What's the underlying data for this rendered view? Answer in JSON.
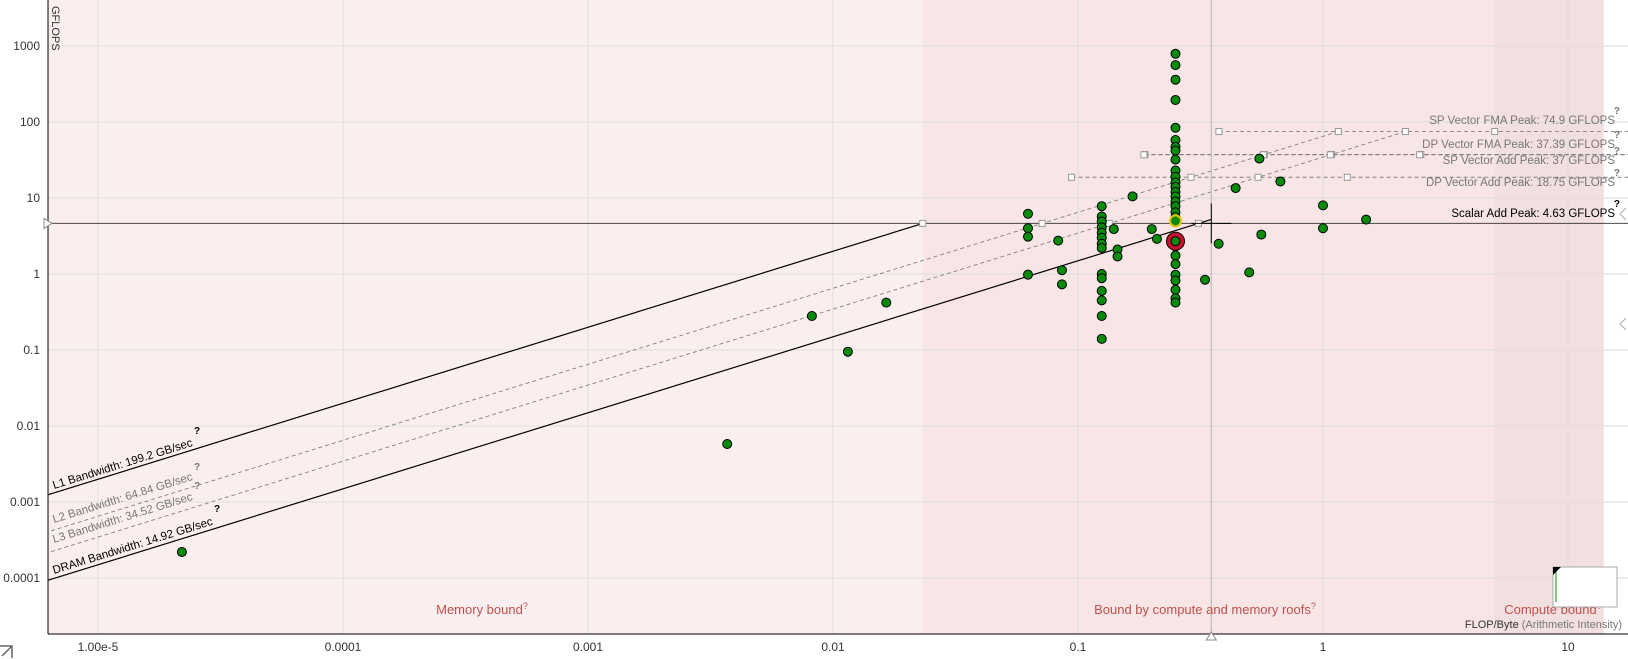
{
  "chart_data": {
    "type": "scatter",
    "title": "",
    "xlabel": "FLOP/Byte (Arithmetic Intensity)",
    "ylabel": "GFLOPS",
    "xscale": "log",
    "yscale": "log",
    "xlim": [
      5e-06,
      14
    ],
    "ylim": [
      5e-05,
      1800
    ],
    "grid": true,
    "x_ticks": [
      {
        "value": 1e-05,
        "label": "1.00e-5"
      },
      {
        "value": 0.0001,
        "label": "0.0001"
      },
      {
        "value": 0.001,
        "label": "0.001"
      },
      {
        "value": 0.01,
        "label": "0.01"
      },
      {
        "value": 0.1,
        "label": "0.1"
      },
      {
        "value": 1,
        "label": "1"
      },
      {
        "value": 10,
        "label": "10"
      }
    ],
    "y_ticks": [
      {
        "value": 1000,
        "label": "1000"
      },
      {
        "value": 100,
        "label": "100"
      },
      {
        "value": 10,
        "label": "10"
      },
      {
        "value": 1,
        "label": "1"
      },
      {
        "value": 0.1,
        "label": "0.1"
      },
      {
        "value": 0.01,
        "label": "0.01"
      },
      {
        "value": 0.001,
        "label": "0.001"
      },
      {
        "value": 0.0001,
        "label": "0.0001"
      }
    ],
    "bandwidth_roofs": [
      {
        "label": "L1 Bandwidth: 199.2 GB/sec",
        "gbps": 199.2,
        "style": "solid",
        "color": "#000000",
        "help": "?"
      },
      {
        "label": "L2 Bandwidth: 64.84 GB/sec",
        "gbps": 64.84,
        "style": "dashed",
        "color": "#808080",
        "help": "?"
      },
      {
        "label": "L3 Bandwidth: 34.52 GB/sec",
        "gbps": 34.52,
        "style": "dashed",
        "color": "#808080",
        "help": "?"
      },
      {
        "label": "DRAM Bandwidth: 14.92 GB/sec",
        "gbps": 14.92,
        "style": "solid",
        "color": "#000000",
        "help": "?"
      }
    ],
    "compute_roofs": [
      {
        "label": "SP Vector FMA Peak: 74.9 GFLOPS",
        "gflops": 74.9,
        "style": "dashed",
        "color": "#808080",
        "help": "?"
      },
      {
        "label": "DP Vector FMA Peak: 37.39 GFLOPS",
        "gflops": 37.39,
        "style": "dashed",
        "color": "#808080",
        "help": "?"
      },
      {
        "label": "SP Vector Add Peak: 37 GFLOPS",
        "gflops": 37,
        "style": "dashed",
        "color": "#808080",
        "help": "?"
      },
      {
        "label": "DP Vector Add Peak: 18.75 GFLOPS",
        "gflops": 18.75,
        "style": "dashed",
        "color": "#808080",
        "help": "?"
      },
      {
        "label": "Scalar Add Peak: 4.63 GFLOPS",
        "gflops": 4.63,
        "style": "solid",
        "color": "#000000",
        "help": "?"
      }
    ],
    "regions": [
      {
        "label": "Memory bound",
        "help": "?",
        "from": 5e-06,
        "to": 0.0232,
        "color": "#fbeeee"
      },
      {
        "label": "Bound by compute and memory roofs",
        "help": "?",
        "from": 0.0232,
        "to": 5.0,
        "color": "#f8e6e6"
      },
      {
        "label": "Compute bound",
        "help": "?",
        "from": 5.0,
        "to": 14,
        "color": "#f2dfdf"
      }
    ],
    "crosshair": {
      "x": 0.35,
      "y": 4.63
    },
    "highlight_point": {
      "x": 0.25,
      "y": 2.7
    },
    "selected_point": {
      "x": 0.25,
      "y": 5.0
    },
    "points": [
      {
        "x": 2.2e-05,
        "y": 0.00022
      },
      {
        "x": 0.0037,
        "y": 0.0058
      },
      {
        "x": 0.0082,
        "y": 0.28
      },
      {
        "x": 0.0115,
        "y": 0.095
      },
      {
        "x": 0.0165,
        "y": 0.42
      },
      {
        "x": 0.0625,
        "y": 6.2
      },
      {
        "x": 0.0625,
        "y": 4.0
      },
      {
        "x": 0.0625,
        "y": 3.1
      },
      {
        "x": 0.0625,
        "y": 0.98
      },
      {
        "x": 0.083,
        "y": 2.75
      },
      {
        "x": 0.086,
        "y": 1.12
      },
      {
        "x": 0.086,
        "y": 0.73
      },
      {
        "x": 0.125,
        "y": 7.8
      },
      {
        "x": 0.125,
        "y": 5.7
      },
      {
        "x": 0.125,
        "y": 4.9
      },
      {
        "x": 0.125,
        "y": 4.1
      },
      {
        "x": 0.125,
        "y": 3.5
      },
      {
        "x": 0.125,
        "y": 3.0
      },
      {
        "x": 0.125,
        "y": 2.5
      },
      {
        "x": 0.125,
        "y": 2.2
      },
      {
        "x": 0.125,
        "y": 1.0
      },
      {
        "x": 0.125,
        "y": 0.88
      },
      {
        "x": 0.125,
        "y": 0.6
      },
      {
        "x": 0.125,
        "y": 0.45
      },
      {
        "x": 0.125,
        "y": 0.28
      },
      {
        "x": 0.125,
        "y": 0.14
      },
      {
        "x": 0.14,
        "y": 3.9
      },
      {
        "x": 0.145,
        "y": 2.1
      },
      {
        "x": 0.145,
        "y": 1.7
      },
      {
        "x": 0.167,
        "y": 10.5
      },
      {
        "x": 0.2,
        "y": 3.9
      },
      {
        "x": 0.21,
        "y": 2.9
      },
      {
        "x": 0.25,
        "y": 790
      },
      {
        "x": 0.25,
        "y": 560
      },
      {
        "x": 0.25,
        "y": 360
      },
      {
        "x": 0.25,
        "y": 195
      },
      {
        "x": 0.25,
        "y": 84
      },
      {
        "x": 0.25,
        "y": 58
      },
      {
        "x": 0.25,
        "y": 47
      },
      {
        "x": 0.25,
        "y": 42
      },
      {
        "x": 0.25,
        "y": 32
      },
      {
        "x": 0.25,
        "y": 23
      },
      {
        "x": 0.25,
        "y": 19
      },
      {
        "x": 0.25,
        "y": 16
      },
      {
        "x": 0.25,
        "y": 14
      },
      {
        "x": 0.25,
        "y": 12
      },
      {
        "x": 0.25,
        "y": 10.5
      },
      {
        "x": 0.25,
        "y": 9.0
      },
      {
        "x": 0.25,
        "y": 7.8
      },
      {
        "x": 0.25,
        "y": 6.5
      },
      {
        "x": 0.25,
        "y": 5.6
      },
      {
        "x": 0.25,
        "y": 2.3
      },
      {
        "x": 0.25,
        "y": 1.75
      },
      {
        "x": 0.25,
        "y": 1.35
      },
      {
        "x": 0.25,
        "y": 0.98
      },
      {
        "x": 0.25,
        "y": 0.82
      },
      {
        "x": 0.25,
        "y": 0.62
      },
      {
        "x": 0.25,
        "y": 0.48
      },
      {
        "x": 0.25,
        "y": 0.42
      },
      {
        "x": 0.33,
        "y": 0.84
      },
      {
        "x": 0.375,
        "y": 2.5
      },
      {
        "x": 0.44,
        "y": 13.5
      },
      {
        "x": 0.5,
        "y": 1.05
      },
      {
        "x": 0.55,
        "y": 33
      },
      {
        "x": 0.56,
        "y": 3.3
      },
      {
        "x": 0.67,
        "y": 16.5
      },
      {
        "x": 1.0,
        "y": 8.0
      },
      {
        "x": 1.0,
        "y": 4.0
      },
      {
        "x": 1.5,
        "y": 5.2
      }
    ]
  }
}
